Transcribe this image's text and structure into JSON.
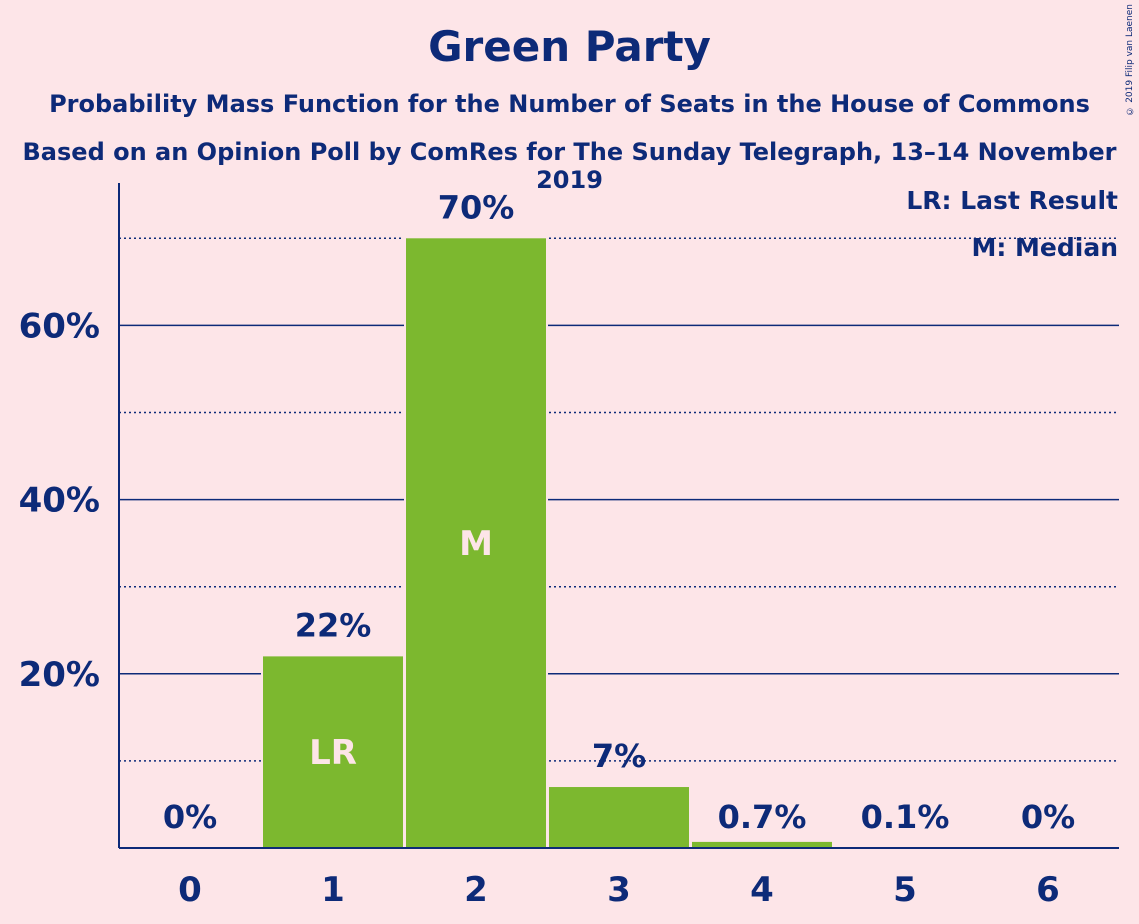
{
  "copyright": "© 2019 Filip van Laenen",
  "chart_data": {
    "type": "bar",
    "title": "Green Party",
    "subtitle": "Probability Mass Function for the Number of Seats in the House of Commons",
    "subtitle2": "Based on an Opinion Poll by ComRes for The Sunday Telegraph, 13–14 November 2019",
    "categories": [
      "0",
      "1",
      "2",
      "3",
      "4",
      "5",
      "6"
    ],
    "values": [
      0,
      22,
      70,
      7,
      0.7,
      0.1,
      0
    ],
    "data_labels": [
      "0%",
      "22%",
      "70%",
      "7%",
      "0.7%",
      "0.1%",
      "0%"
    ],
    "bar_markers": [
      "",
      "LR",
      "M",
      "",
      "",
      "",
      ""
    ],
    "ylim": [
      0,
      76
    ],
    "y_ticks": [
      20,
      40,
      60
    ],
    "y_tick_labels": [
      "20%",
      "40%",
      "60%"
    ],
    "minor_gridlines": [
      10,
      30,
      50,
      70
    ],
    "legend": [
      "LR: Last Result",
      "M: Median"
    ],
    "legend_position": "top-right",
    "colors": {
      "bar": "#7cb82f",
      "text": "#0d2a78",
      "background": "#fde5e8"
    }
  }
}
